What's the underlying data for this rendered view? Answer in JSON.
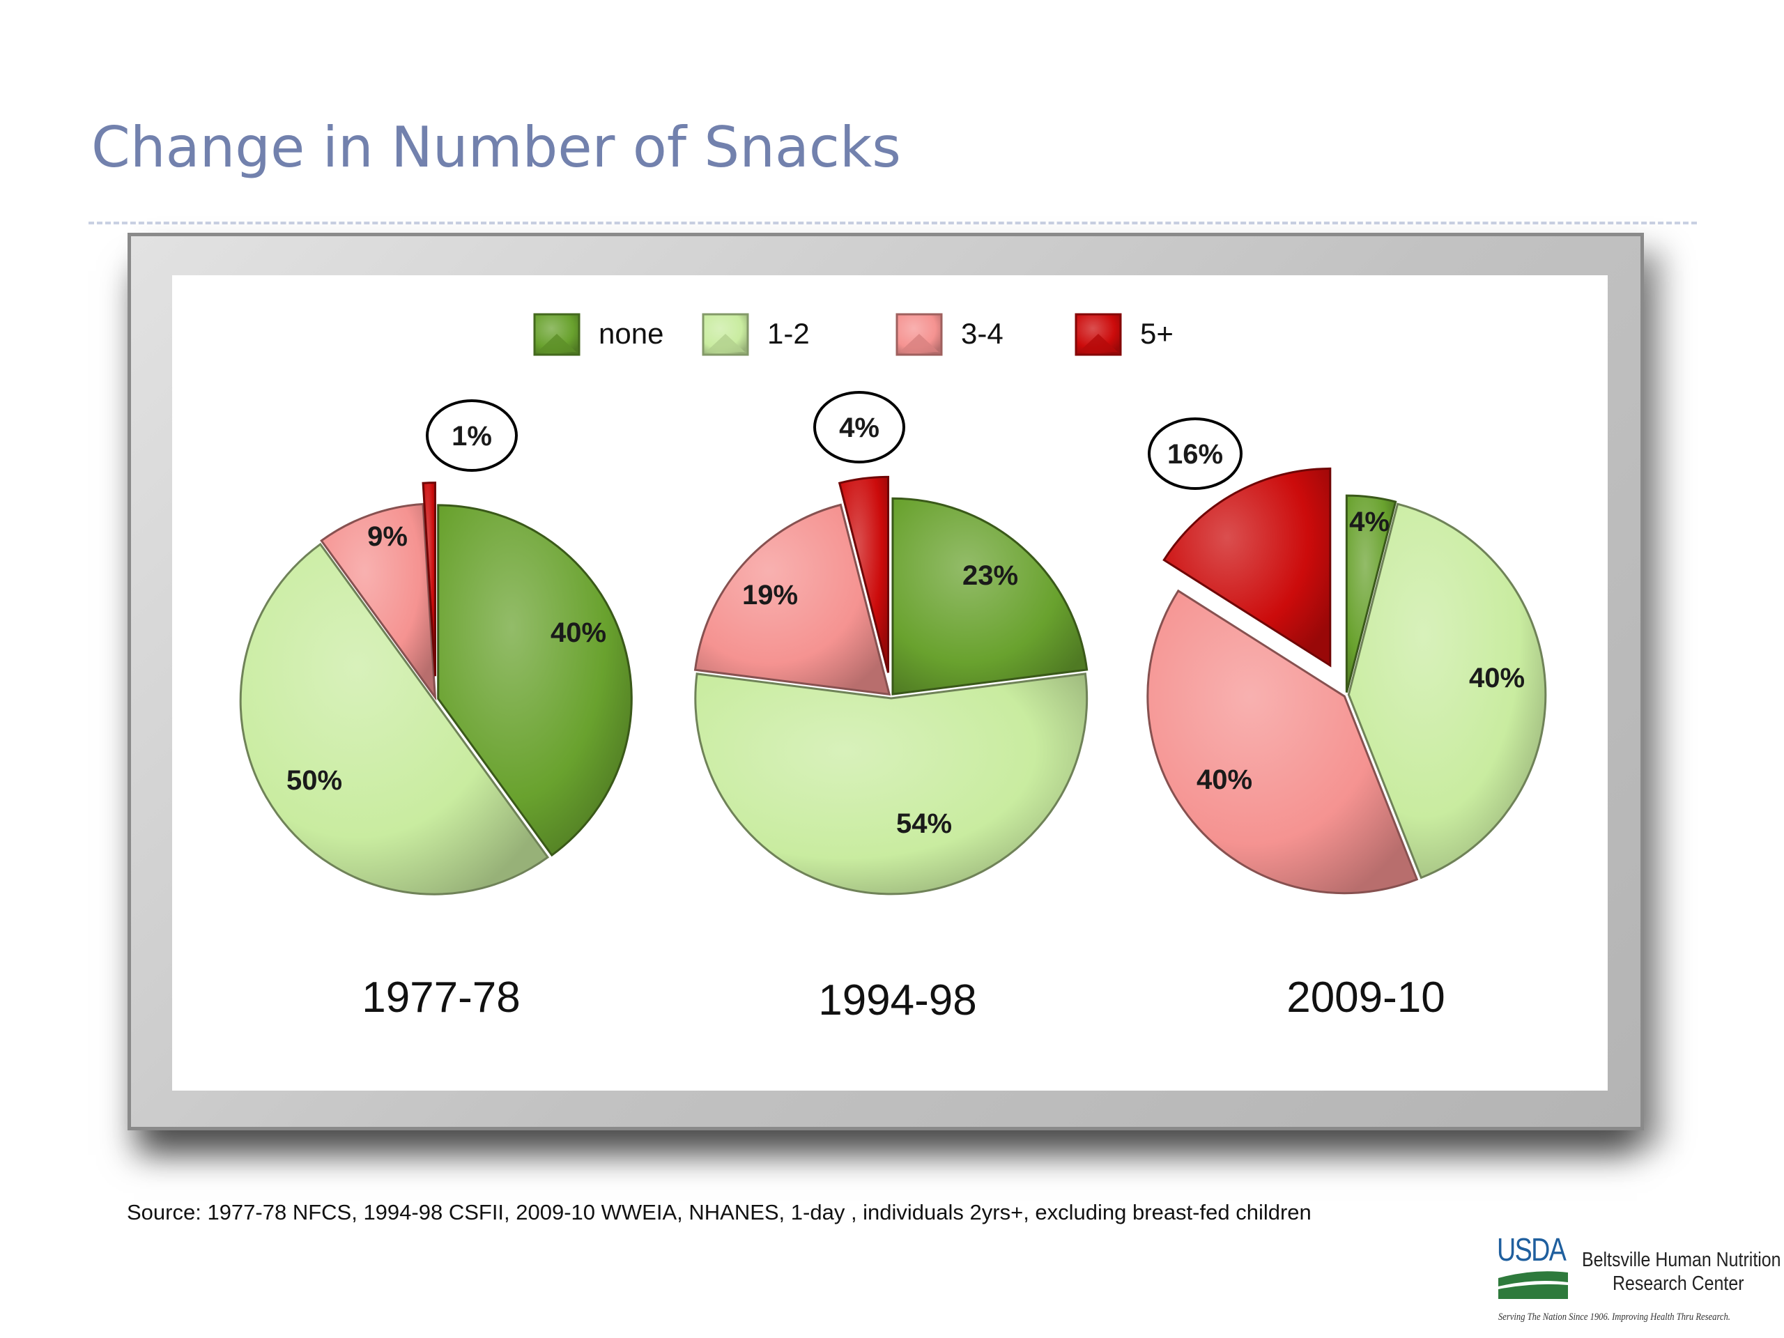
{
  "slide": {
    "title": "Change in Number of Snacks",
    "source": "Source:  1977-78 NFCS, 1994-98 CSFII,  2009-10 WWEIA, NHANES, 1-day , individuals 2yrs+, excluding breast-fed children",
    "logo": {
      "usda": "USDA",
      "name_line1": "Beltsville Human Nutrition",
      "name_line2": "Research Center",
      "tagline": "Serving The Nation Since 1906. Improving Health Thru Research."
    }
  },
  "colors": {
    "title": "#7281ad",
    "none": "#69a22e",
    "1-2": "#c9eca0",
    "3-4": "#f59391",
    "5+": "#cc0b0b"
  },
  "chart_data": {
    "type": "pie",
    "legend": {
      "position": "top",
      "entries": [
        "none",
        "1-2",
        "3-4",
        "5+"
      ]
    },
    "categories": [
      "none",
      "1-2",
      "3-4",
      "5+"
    ],
    "highlighted_category": "5+",
    "series": [
      {
        "name": "1977-78",
        "values": [
          40,
          50,
          9,
          1
        ],
        "labels": [
          "40%",
          "50%",
          "9%",
          "1%"
        ]
      },
      {
        "name": "1994-98",
        "values": [
          23,
          54,
          19,
          4
        ],
        "labels": [
          "23%",
          "54%",
          "19%",
          "4%"
        ]
      },
      {
        "name": "2009-10",
        "values": [
          4,
          40,
          40,
          16
        ],
        "labels": [
          "4%",
          "40%",
          "40%",
          "16%"
        ]
      }
    ]
  }
}
